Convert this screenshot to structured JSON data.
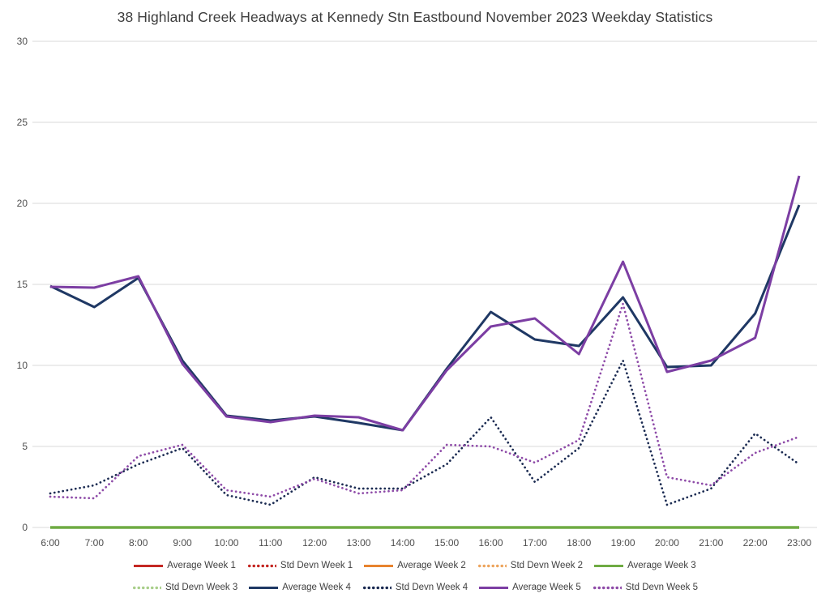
{
  "chart_data": {
    "type": "line",
    "title": "38 Highland Creek Headways at Kennedy Stn Eastbound November 2023 Weekday Statistics",
    "xlabel": "",
    "ylabel": "",
    "ylim": [
      0,
      30
    ],
    "y_ticks": [
      0,
      5,
      10,
      15,
      20,
      25,
      30
    ],
    "grid": "horizontal",
    "legend_position": "bottom",
    "x_categories": [
      "6:00",
      "7:00",
      "8:00",
      "9:00",
      "10:00",
      "11:00",
      "12:00",
      "13:00",
      "14:00",
      "15:00",
      "16:00",
      "17:00",
      "18:00",
      "19:00",
      "20:00",
      "21:00",
      "22:00",
      "23:00"
    ],
    "series": [
      {
        "name": "Average Week 1",
        "color": "#c42823",
        "style": "solid",
        "visible": false,
        "values": []
      },
      {
        "name": "Std Devn Week 1",
        "color": "#c42823",
        "style": "dotted",
        "visible": false,
        "values": []
      },
      {
        "name": "Average Week 2",
        "color": "#e8832e",
        "style": "solid",
        "visible": false,
        "values": []
      },
      {
        "name": "Std Devn Week 2",
        "color": "#eda55e",
        "style": "dotted",
        "visible": false,
        "values": []
      },
      {
        "name": "Average Week 3",
        "color": "#6fab43",
        "style": "solid",
        "visible": true,
        "values": [
          0,
          0,
          0,
          0,
          0,
          0,
          0,
          0,
          0,
          0,
          0,
          0,
          0,
          0,
          0,
          0,
          0,
          0
        ]
      },
      {
        "name": "Std Devn Week 3",
        "color": "#a9cf8b",
        "style": "dotted",
        "visible": false,
        "values": []
      },
      {
        "name": "Average Week 4",
        "color": "#1f3864",
        "style": "solid",
        "visible": true,
        "values": [
          14.9,
          13.6,
          15.4,
          10.3,
          6.9,
          6.6,
          6.85,
          6.45,
          6.0,
          9.8,
          13.3,
          11.6,
          11.2,
          14.2,
          9.9,
          10.0,
          13.2,
          19.9
        ]
      },
      {
        "name": "Std Devn Week 4",
        "color": "#1b2b52",
        "style": "dotted",
        "visible": true,
        "values": [
          2.1,
          2.6,
          3.9,
          4.9,
          2.0,
          1.4,
          3.1,
          2.4,
          2.4,
          3.9,
          6.8,
          2.8,
          4.9,
          10.3,
          1.4,
          2.4,
          5.8,
          3.9
        ]
      },
      {
        "name": "Average Week 5",
        "color": "#7c3ea3",
        "style": "solid",
        "visible": true,
        "values": [
          14.85,
          14.8,
          15.5,
          10.1,
          6.85,
          6.5,
          6.9,
          6.8,
          6.0,
          9.7,
          12.4,
          12.9,
          10.7,
          16.4,
          9.6,
          10.3,
          11.7,
          21.7
        ]
      },
      {
        "name": "Std Devn Week 5",
        "color": "#8e4ba8",
        "style": "dotted",
        "visible": true,
        "values": [
          1.9,
          1.8,
          4.4,
          5.1,
          2.3,
          1.9,
          3.0,
          2.1,
          2.3,
          5.1,
          5.0,
          4.0,
          5.4,
          13.8,
          3.1,
          2.6,
          4.6,
          5.6
        ]
      }
    ],
    "legend_rows": [
      [
        "Average Week 1",
        "Std Devn Week 1",
        "Average Week 2",
        "Std Devn Week 2",
        "Average Week 3"
      ],
      [
        "Std Devn Week 3",
        "Average Week 4",
        "Std Devn Week 4",
        "Average Week 5",
        "Std Devn Week 5"
      ]
    ],
    "gridline_color": "#d9d9d9"
  }
}
